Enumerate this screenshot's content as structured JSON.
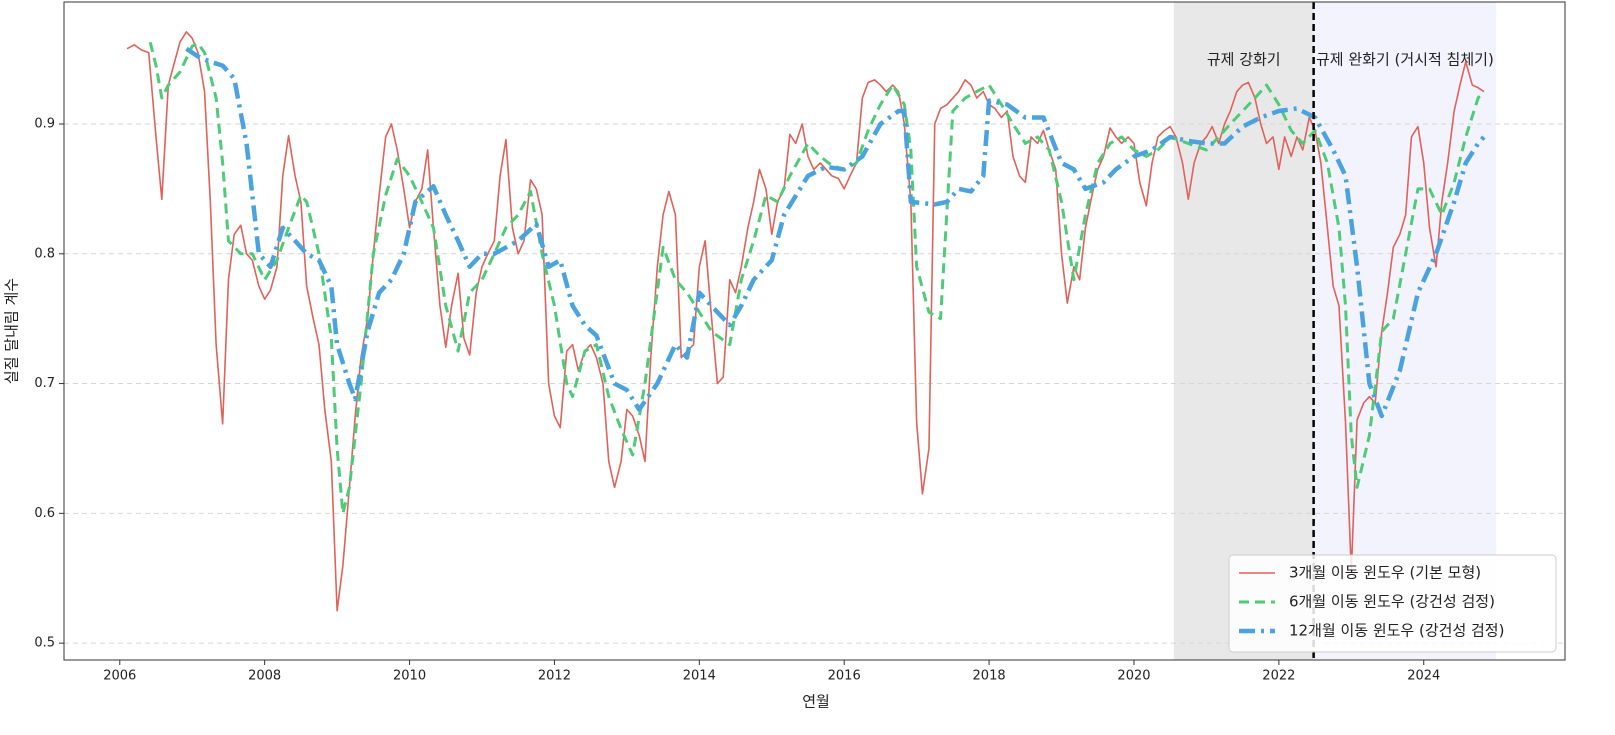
{
  "chart_data": {
    "type": "line",
    "xlabel": "연월",
    "ylabel": "실질 달내림 계수",
    "xlim": [
      2005.23,
      2025.95
    ],
    "ylim": [
      0.487,
      0.994
    ],
    "xticks": [
      2006,
      2008,
      2010,
      2012,
      2014,
      2016,
      2018,
      2020,
      2022,
      2024
    ],
    "yticks": [
      0.5,
      0.6,
      0.7,
      0.8,
      0.9
    ],
    "grid": "y",
    "legend": "lower right",
    "shaded_regions": [
      {
        "start": 2020.55,
        "end": 2022.48,
        "label": "규제 강화기",
        "color": "#e8e8e8"
      },
      {
        "start": 2022.48,
        "end": 2025.0,
        "label": "규제 완화기 (거시적 침체기)",
        "color": "#f3f3fd"
      }
    ],
    "vline": 2022.48,
    "series": [
      {
        "name": "3개월 이동 윈도우 (기본 모형)",
        "color": "#e0625a",
        "style": "solid",
        "width": 1.6,
        "x": [
          2006.1,
          2006.2,
          2006.3,
          2006.4,
          2006.5,
          2006.58,
          2006.67,
          2006.83,
          2006.92,
          2007.0,
          2007.08,
          2007.17,
          2007.25,
          2007.33,
          2007.42,
          2007.5,
          2007.58,
          2007.67,
          2007.75,
          2007.83,
          2007.92,
          2008.0,
          2008.08,
          2008.17,
          2008.25,
          2008.33,
          2008.42,
          2008.5,
          2008.58,
          2008.67,
          2008.75,
          2008.83,
          2008.92,
          2009.0,
          2009.08,
          2009.17,
          2009.25,
          2009.33,
          2009.42,
          2009.5,
          2009.58,
          2009.67,
          2009.75,
          2009.83,
          2009.92,
          2010.0,
          2010.08,
          2010.17,
          2010.25,
          2010.33,
          2010.42,
          2010.5,
          2010.58,
          2010.67,
          2010.75,
          2010.83,
          2010.92,
          2011.0,
          2011.08,
          2011.17,
          2011.25,
          2011.33,
          2011.42,
          2011.5,
          2011.58,
          2011.67,
          2011.75,
          2011.83,
          2011.92,
          2012.0,
          2012.08,
          2012.17,
          2012.25,
          2012.33,
          2012.42,
          2012.5,
          2012.58,
          2012.67,
          2012.75,
          2012.83,
          2012.92,
          2013.0,
          2013.08,
          2013.17,
          2013.25,
          2013.33,
          2013.42,
          2013.5,
          2013.58,
          2013.67,
          2013.75,
          2013.83,
          2013.92,
          2014.0,
          2014.08,
          2014.17,
          2014.25,
          2014.33,
          2014.42,
          2014.5,
          2014.58,
          2014.67,
          2014.75,
          2014.83,
          2014.92,
          2015.0,
          2015.08,
          2015.17,
          2015.25,
          2015.33,
          2015.42,
          2015.5,
          2015.58,
          2015.67,
          2015.75,
          2015.83,
          2015.92,
          2016.0,
          2016.08,
          2016.17,
          2016.25,
          2016.33,
          2016.42,
          2016.5,
          2016.58,
          2016.67,
          2016.75,
          2016.83,
          2016.92,
          2017.0,
          2017.08,
          2017.17,
          2017.25,
          2017.33,
          2017.42,
          2017.5,
          2017.58,
          2017.67,
          2017.75,
          2017.83,
          2017.92,
          2018.0,
          2018.08,
          2018.17,
          2018.25,
          2018.33,
          2018.42,
          2018.5,
          2018.58,
          2018.67,
          2018.75,
          2018.83,
          2018.92,
          2019.0,
          2019.08,
          2019.17,
          2019.25,
          2019.33,
          2019.42,
          2019.5,
          2019.58,
          2019.67,
          2019.75,
          2019.83,
          2019.92,
          2020.0,
          2020.08,
          2020.17,
          2020.25,
          2020.33,
          2020.42,
          2020.5,
          2020.58,
          2020.67,
          2020.75,
          2020.83,
          2020.92,
          2021.0,
          2021.08,
          2021.17,
          2021.25,
          2021.33,
          2021.42,
          2021.5,
          2021.58,
          2021.67,
          2021.75,
          2021.83,
          2021.92,
          2022.0,
          2022.08,
          2022.17,
          2022.25,
          2022.33,
          2022.42,
          2022.5,
          2022.58,
          2022.67,
          2022.75,
          2022.83,
          2022.92,
          2023.0,
          2023.08,
          2023.17,
          2023.25,
          2023.33,
          2023.42,
          2023.5,
          2023.58,
          2023.67,
          2023.75,
          2023.83,
          2023.92,
          2024.0,
          2024.08,
          2024.17,
          2024.25,
          2024.33,
          2024.42,
          2024.5,
          2024.58,
          2024.67,
          2024.75,
          2024.83
        ],
        "values": [
          0.958,
          0.961,
          0.957,
          0.955,
          0.89,
          0.842,
          0.93,
          0.963,
          0.971,
          0.966,
          0.955,
          0.925,
          0.84,
          0.73,
          0.669,
          0.78,
          0.815,
          0.822,
          0.8,
          0.795,
          0.775,
          0.765,
          0.772,
          0.79,
          0.86,
          0.891,
          0.86,
          0.84,
          0.775,
          0.75,
          0.73,
          0.68,
          0.64,
          0.525,
          0.56,
          0.62,
          0.675,
          0.72,
          0.75,
          0.8,
          0.845,
          0.89,
          0.9,
          0.88,
          0.85,
          0.82,
          0.84,
          0.85,
          0.88,
          0.82,
          0.76,
          0.728,
          0.76,
          0.785,
          0.735,
          0.722,
          0.77,
          0.79,
          0.8,
          0.81,
          0.86,
          0.888,
          0.82,
          0.8,
          0.81,
          0.857,
          0.85,
          0.83,
          0.7,
          0.675,
          0.666,
          0.725,
          0.73,
          0.71,
          0.725,
          0.73,
          0.72,
          0.7,
          0.64,
          0.62,
          0.64,
          0.68,
          0.675,
          0.66,
          0.64,
          0.72,
          0.79,
          0.83,
          0.848,
          0.83,
          0.72,
          0.725,
          0.73,
          0.79,
          0.81,
          0.75,
          0.7,
          0.705,
          0.78,
          0.77,
          0.79,
          0.82,
          0.84,
          0.865,
          0.85,
          0.815,
          0.84,
          0.85,
          0.892,
          0.885,
          0.9,
          0.875,
          0.865,
          0.87,
          0.865,
          0.86,
          0.858,
          0.85,
          0.86,
          0.87,
          0.92,
          0.932,
          0.934,
          0.93,
          0.925,
          0.93,
          0.925,
          0.9,
          0.84,
          0.67,
          0.615,
          0.65,
          0.9,
          0.912,
          0.915,
          0.92,
          0.925,
          0.934,
          0.93,
          0.92,
          0.925,
          0.915,
          0.912,
          0.905,
          0.91,
          0.875,
          0.86,
          0.855,
          0.89,
          0.885,
          0.895,
          0.88,
          0.865,
          0.8,
          0.762,
          0.79,
          0.78,
          0.82,
          0.845,
          0.865,
          0.875,
          0.897,
          0.89,
          0.885,
          0.89,
          0.885,
          0.855,
          0.837,
          0.87,
          0.89,
          0.895,
          0.898,
          0.89,
          0.87,
          0.842,
          0.87,
          0.885,
          0.89,
          0.898,
          0.885,
          0.9,
          0.91,
          0.925,
          0.93,
          0.932,
          0.92,
          0.9,
          0.885,
          0.89,
          0.865,
          0.89,
          0.875,
          0.89,
          0.88,
          0.905,
          0.895,
          0.87,
          0.82,
          0.775,
          0.76,
          0.67,
          0.555,
          0.672,
          0.685,
          0.69,
          0.685,
          0.74,
          0.77,
          0.805,
          0.815,
          0.83,
          0.89,
          0.898,
          0.87,
          0.82,
          0.79,
          0.84,
          0.87,
          0.91,
          0.93,
          0.948,
          0.93,
          0.928,
          0.925
        ]
      },
      {
        "name": "6개월 이동 윈도우 (강건성 검정)",
        "color": "#4ecb77",
        "style": "dashed",
        "width": 3,
        "x": [
          2006.42,
          2006.5,
          2006.58,
          2006.67,
          2006.83,
          2007.0,
          2007.08,
          2007.17,
          2007.33,
          2007.42,
          2007.5,
          2007.67,
          2007.83,
          2008.0,
          2008.17,
          2008.33,
          2008.5,
          2008.58,
          2008.75,
          2008.92,
          2009.0,
          2009.08,
          2009.17,
          2009.33,
          2009.5,
          2009.67,
          2009.83,
          2010.0,
          2010.17,
          2010.33,
          2010.5,
          2010.67,
          2010.83,
          2011.0,
          2011.17,
          2011.33,
          2011.5,
          2011.67,
          2011.83,
          2012.0,
          2012.17,
          2012.25,
          2012.42,
          2012.58,
          2012.75,
          2012.92,
          2013.08,
          2013.25,
          2013.5,
          2013.67,
          2013.83,
          2014.0,
          2014.17,
          2014.42,
          2014.58,
          2014.75,
          2014.92,
          2015.08,
          2015.25,
          2015.5,
          2015.67,
          2015.83,
          2016.0,
          2016.17,
          2016.33,
          2016.5,
          2016.67,
          2016.83,
          2016.92,
          2017.0,
          2017.17,
          2017.33,
          2017.5,
          2017.67,
          2017.83,
          2018.0,
          2018.17,
          2018.33,
          2018.5,
          2018.67,
          2018.83,
          2019.0,
          2019.17,
          2019.33,
          2019.5,
          2019.67,
          2019.83,
          2020.0,
          2020.17,
          2020.33,
          2020.5,
          2020.75,
          2021.0,
          2021.17,
          2021.33,
          2021.5,
          2021.67,
          2021.83,
          2022.0,
          2022.17,
          2022.33,
          2022.5,
          2022.67,
          2022.83,
          2022.92,
          2023.0,
          2023.08,
          2023.25,
          2023.42,
          2023.58,
          2023.75,
          2023.92,
          2024.08,
          2024.25,
          2024.42,
          2024.58,
          2024.75,
          2024.83
        ],
        "values": [
          0.963,
          0.945,
          0.92,
          0.93,
          0.94,
          0.96,
          0.962,
          0.955,
          0.92,
          0.87,
          0.81,
          0.8,
          0.8,
          0.78,
          0.795,
          0.82,
          0.845,
          0.84,
          0.8,
          0.735,
          0.65,
          0.6,
          0.62,
          0.7,
          0.8,
          0.845,
          0.873,
          0.86,
          0.84,
          0.82,
          0.76,
          0.725,
          0.77,
          0.78,
          0.8,
          0.82,
          0.83,
          0.848,
          0.8,
          0.76,
          0.7,
          0.69,
          0.725,
          0.73,
          0.69,
          0.665,
          0.645,
          0.7,
          0.805,
          0.78,
          0.77,
          0.755,
          0.74,
          0.73,
          0.78,
          0.81,
          0.845,
          0.84,
          0.86,
          0.885,
          0.875,
          0.868,
          0.865,
          0.87,
          0.895,
          0.915,
          0.93,
          0.915,
          0.88,
          0.79,
          0.755,
          0.75,
          0.91,
          0.92,
          0.925,
          0.93,
          0.915,
          0.9,
          0.885,
          0.89,
          0.88,
          0.84,
          0.78,
          0.83,
          0.87,
          0.885,
          0.89,
          0.88,
          0.875,
          0.88,
          0.89,
          0.885,
          0.88,
          0.89,
          0.9,
          0.91,
          0.92,
          0.93,
          0.915,
          0.895,
          0.885,
          0.895,
          0.87,
          0.82,
          0.76,
          0.66,
          0.62,
          0.66,
          0.74,
          0.75,
          0.8,
          0.85,
          0.85,
          0.83,
          0.855,
          0.89,
          0.92,
          0.925
        ]
      },
      {
        "name": "12개월 이동 윈도우 (강건성 검정)",
        "color": "#4aa3de",
        "style": "dashdot",
        "width": 4.5,
        "x": [
          2006.92,
          2007.08,
          2007.25,
          2007.42,
          2007.58,
          2007.75,
          2007.92,
          2008.08,
          2008.25,
          2008.42,
          2008.58,
          2008.75,
          2008.92,
          2009.0,
          2009.17,
          2009.25,
          2009.42,
          2009.58,
          2009.75,
          2009.92,
          2010.08,
          2010.33,
          2010.5,
          2010.67,
          2010.83,
          2011.0,
          2011.17,
          2011.5,
          2011.75,
          2011.92,
          2012.08,
          2012.25,
          2012.42,
          2012.58,
          2012.83,
          2013.0,
          2013.17,
          2013.42,
          2013.67,
          2013.83,
          2014.0,
          2014.25,
          2014.42,
          2014.58,
          2014.75,
          2015.0,
          2015.17,
          2015.5,
          2015.75,
          2016.0,
          2016.25,
          2016.5,
          2016.75,
          2016.83,
          2016.92,
          2017.25,
          2017.42,
          2017.58,
          2017.75,
          2017.92,
          2018.0,
          2018.25,
          2018.5,
          2018.75,
          2019.0,
          2019.17,
          2019.33,
          2019.58,
          2019.75,
          2020.0,
          2020.25,
          2020.5,
          2020.75,
          2021.0,
          2021.25,
          2021.5,
          2021.75,
          2022.0,
          2022.25,
          2022.5,
          2022.75,
          2022.92,
          2023.08,
          2023.25,
          2023.42,
          2023.67,
          2023.92,
          2024.17,
          2024.42,
          2024.58,
          2024.75,
          2024.83
        ],
        "values": [
          0.958,
          0.952,
          0.948,
          0.945,
          0.935,
          0.885,
          0.8,
          0.79,
          0.82,
          0.81,
          0.8,
          0.795,
          0.775,
          0.73,
          0.7,
          0.688,
          0.74,
          0.77,
          0.78,
          0.8,
          0.84,
          0.852,
          0.83,
          0.81,
          0.79,
          0.8,
          0.8,
          0.81,
          0.823,
          0.79,
          0.795,
          0.76,
          0.745,
          0.737,
          0.7,
          0.695,
          0.68,
          0.7,
          0.73,
          0.72,
          0.77,
          0.755,
          0.745,
          0.76,
          0.78,
          0.795,
          0.83,
          0.86,
          0.867,
          0.865,
          0.875,
          0.9,
          0.91,
          0.91,
          0.84,
          0.838,
          0.84,
          0.85,
          0.848,
          0.86,
          0.918,
          0.915,
          0.905,
          0.905,
          0.87,
          0.865,
          0.85,
          0.855,
          0.865,
          0.875,
          0.88,
          0.89,
          0.887,
          0.885,
          0.885,
          0.898,
          0.905,
          0.91,
          0.912,
          0.905,
          0.88,
          0.86,
          0.79,
          0.7,
          0.675,
          0.71,
          0.77,
          0.8,
          0.84,
          0.87,
          0.885,
          0.89
        ]
      }
    ]
  }
}
